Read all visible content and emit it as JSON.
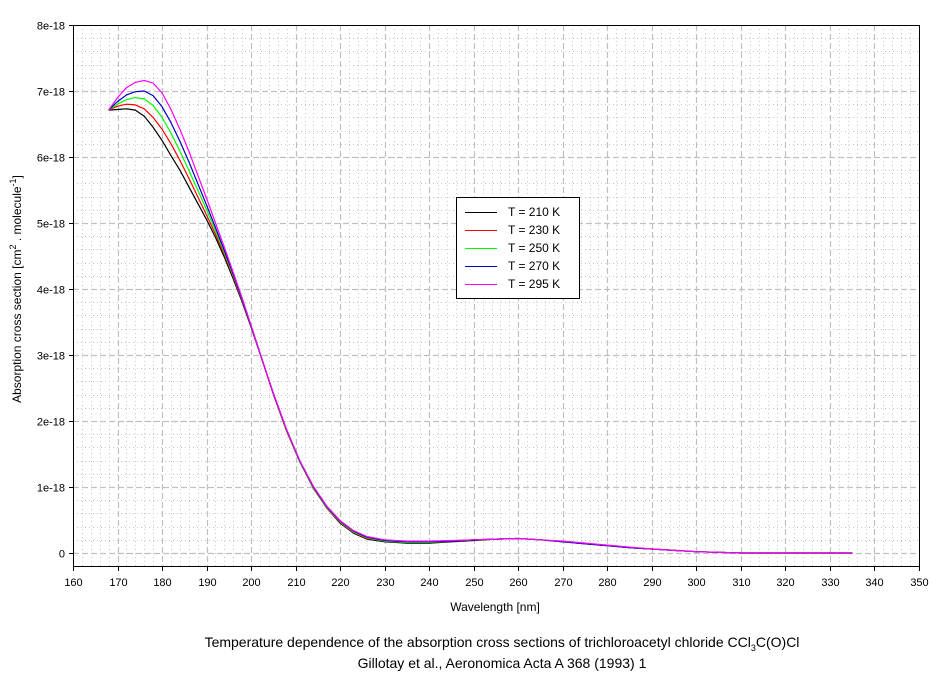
{
  "chart_data": {
    "type": "line",
    "title": "Temperature dependence of the absorption cross sections of trichloroacetyl chloride CCl3C(O)Cl",
    "subtitle": "Gillotay et al., Aeronomica Acta A 368 (1993) 1",
    "title_parts": {
      "pre": "Temperature dependence of the absorption cross sections of trichloroacetyl chloride CCl",
      "sub": "3",
      "post": "C(O)Cl"
    },
    "xlabel": "Wavelength [nm]",
    "ylabel_parts": {
      "pre": "Absorption cross section [cm",
      "sup1": "2",
      "mid": " . molecule",
      "sup2": "-1",
      "post": "]"
    },
    "xlim": [
      160,
      350
    ],
    "ylim": [
      -2e-19,
      8e-18
    ],
    "xticks": [
      160,
      170,
      180,
      190,
      200,
      210,
      220,
      230,
      240,
      250,
      260,
      270,
      280,
      290,
      300,
      310,
      320,
      330,
      340,
      350
    ],
    "xtick_labels": [
      "160",
      "170",
      "180",
      "190",
      "200",
      "210",
      "220",
      "230",
      "240",
      "250",
      "260",
      "270",
      "280",
      "290",
      "300",
      "310",
      "320",
      "330",
      "340",
      "350"
    ],
    "yticks": [
      0,
      1e-18,
      2e-18,
      3e-18,
      4e-18,
      5e-18,
      6e-18,
      7e-18,
      8e-18
    ],
    "ytick_labels": [
      "0",
      "1e-18",
      "2e-18",
      "3e-18",
      "4e-18",
      "5e-18",
      "6e-18",
      "7e-18",
      "8e-18"
    ],
    "grid": true,
    "legend_position": "center",
    "x": [
      168,
      170,
      172,
      174,
      176,
      178,
      180,
      182,
      184,
      186,
      188,
      190,
      192,
      194,
      196,
      198,
      200,
      202,
      205,
      208,
      211,
      214,
      217,
      220,
      223,
      226,
      230,
      235,
      240,
      245,
      250,
      255,
      260,
      265,
      270,
      275,
      280,
      285,
      290,
      295,
      300,
      305,
      310,
      320,
      335
    ],
    "series": [
      {
        "name": "T = 210 K",
        "color": "#000000",
        "values": [
          6.71e-18,
          6.72e-18,
          6.73e-18,
          6.71e-18,
          6.62e-18,
          6.45e-18,
          6.25e-18,
          6.02e-18,
          5.8e-18,
          5.55e-18,
          5.3e-18,
          5.05e-18,
          4.78e-18,
          4.48e-18,
          4.15e-18,
          3.8e-18,
          3.42e-18,
          3.02e-18,
          2.42e-18,
          1.86e-18,
          1.38e-18,
          9.8e-19,
          6.8e-19,
          4.5e-19,
          3e-19,
          2.1e-19,
          1.7e-19,
          1.5e-19,
          1.5e-19,
          1.7e-19,
          1.9e-19,
          2.1e-19,
          2.2e-19,
          2e-19,
          1.7e-19,
          1.4e-19,
          1.1e-19,
          8e-20,
          6e-20,
          4e-20,
          2e-20,
          1e-20,
          0.0,
          0.0,
          0.0
        ]
      },
      {
        "name": "T = 230 K",
        "color": "#ff0000",
        "values": [
          6.71e-18,
          6.77e-18,
          6.8e-18,
          6.79e-18,
          6.73e-18,
          6.6e-18,
          6.42e-18,
          6.2e-18,
          5.95e-18,
          5.68e-18,
          5.4e-18,
          5.12e-18,
          4.83e-18,
          4.52e-18,
          4.18e-18,
          3.82e-18,
          3.43e-18,
          3.02e-18,
          2.4e-18,
          1.84e-18,
          1.37e-18,
          9.8e-19,
          6.8e-19,
          4.6e-19,
          3.1e-19,
          2.2e-19,
          1.8e-19,
          1.6e-19,
          1.6e-19,
          1.8e-19,
          2e-19,
          2.1e-19,
          2.2e-19,
          2e-19,
          1.7e-19,
          1.4e-19,
          1.1e-19,
          8e-20,
          6e-20,
          4e-20,
          2e-20,
          1e-20,
          0.0,
          0.0,
          0.0
        ]
      },
      {
        "name": "T = 250 K",
        "color": "#00ff00",
        "values": [
          6.71e-18,
          6.8e-18,
          6.87e-18,
          6.9e-18,
          6.88e-18,
          6.78e-18,
          6.6e-18,
          6.36e-18,
          6.09e-18,
          5.8e-18,
          5.5e-18,
          5.2e-18,
          4.88e-18,
          4.55e-18,
          4.2e-18,
          3.83e-18,
          3.44e-18,
          3.03e-18,
          2.41e-18,
          1.85e-18,
          1.37e-18,
          9.9e-19,
          6.9e-19,
          4.7e-19,
          3.2e-19,
          2.3e-19,
          1.8e-19,
          1.6e-19,
          1.6e-19,
          1.8e-19,
          2e-19,
          2.1e-19,
          2.2e-19,
          2e-19,
          1.7e-19,
          1.4e-19,
          1.1e-19,
          8e-20,
          6e-20,
          4e-20,
          2e-20,
          1e-20,
          0.0,
          0.0,
          0.0
        ]
      },
      {
        "name": "T = 270 K",
        "color": "#0000c0",
        "values": [
          6.71e-18,
          6.84e-18,
          6.94e-18,
          6.99e-18,
          7e-18,
          6.93e-18,
          6.76e-18,
          6.52e-18,
          6.24e-18,
          5.93e-18,
          5.6e-18,
          5.27e-18,
          4.93e-18,
          4.58e-18,
          4.22e-18,
          3.84e-18,
          3.44e-18,
          3.03e-18,
          2.41e-18,
          1.86e-18,
          1.38e-18,
          1e-18,
          7e-19,
          4.8e-19,
          3.3e-19,
          2.4e-19,
          1.9e-19,
          1.7e-19,
          1.7e-19,
          1.8e-19,
          2e-19,
          2.1e-19,
          2.2e-19,
          2e-19,
          1.7e-19,
          1.4e-19,
          1.1e-19,
          8e-20,
          6e-20,
          4e-20,
          2e-20,
          1e-20,
          0.0,
          0.0,
          0.0
        ]
      },
      {
        "name": "T = 295 K",
        "color": "#ff00ff",
        "values": [
          6.71e-18,
          6.9e-18,
          7.05e-18,
          7.13e-18,
          7.16e-18,
          7.12e-18,
          6.97e-18,
          6.72e-18,
          6.42e-18,
          6.09e-18,
          5.73e-18,
          5.37e-18,
          5e-18,
          4.63e-18,
          4.25e-18,
          3.86e-18,
          3.45e-18,
          3.03e-18,
          2.42e-18,
          1.87e-18,
          1.39e-18,
          1.01e-18,
          7.1e-19,
          4.9e-19,
          3.4e-19,
          2.5e-19,
          2e-19,
          1.8e-19,
          1.8e-19,
          1.9e-19,
          2e-19,
          2.1e-19,
          2.2e-19,
          2e-19,
          1.8e-19,
          1.5e-19,
          1.2e-19,
          9e-20,
          6e-20,
          4e-20,
          2e-20,
          1e-20,
          0.0,
          0.0,
          0.0
        ]
      }
    ]
  }
}
